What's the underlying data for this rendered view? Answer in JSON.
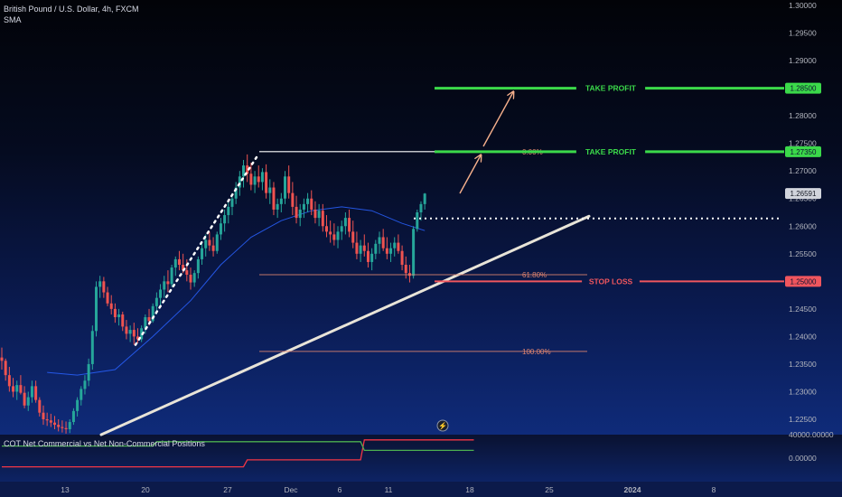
{
  "header": {
    "symbol_line": "British Pound / U.S. Dollar, 4h, FXCM",
    "indicator_label": "SMA"
  },
  "indicator": {
    "title": "COT Net Commercial vs Net Non-Commercial Positions",
    "axis_labels": [
      "40000.00000",
      "0.00000"
    ],
    "line_colors": {
      "commercial": "#f23645",
      "noncommercial": "#4caf50"
    }
  },
  "colors": {
    "up": "#26a69a",
    "down": "#ef5350",
    "take_profit": "#3bd94a",
    "stop_loss": "#f0565e",
    "sma": "#2962ff",
    "fib": "#e0856f",
    "trend": "#e8e4d8",
    "arrow": "#f6b08c"
  },
  "chart_data": {
    "type": "candlestick",
    "symbol": "GBP/USD",
    "timeframe": "4h",
    "y_axis": {
      "ticks": [
        "1.30000",
        "1.29500",
        "1.29000",
        "1.28500",
        "1.28000",
        "1.27500",
        "1.27000",
        "1.26500",
        "1.26000",
        "1.25500",
        "1.25000",
        "1.24500",
        "1.24000",
        "1.23500",
        "1.23000",
        "1.22500"
      ],
      "ylim": [
        1.221,
        1.301
      ]
    },
    "x_axis": {
      "ticks": [
        "13",
        "20",
        "27",
        "Dec",
        "6",
        "11",
        "18",
        "25",
        "2024",
        "8"
      ]
    },
    "current_price": "1.26591",
    "levels": [
      {
        "name": "take_profit_2",
        "label": "TAKE PROFIT",
        "price": 1.285,
        "tag": "1.28500"
      },
      {
        "name": "take_profit_1",
        "label": "TAKE PROFIT",
        "price": 1.2735,
        "tag": "1.27350"
      },
      {
        "name": "stop_loss",
        "label": "STOP LOSS",
        "price": 1.25,
        "tag": "1.25000"
      }
    ],
    "fibonacci": [
      {
        "label": "0.00%",
        "price": 1.2735
      },
      {
        "label": "61.80%",
        "price": 1.2512
      },
      {
        "label": "100.00%",
        "price": 1.2373
      }
    ],
    "entry_level": 1.2614,
    "ohlc": [
      [
        1.2362,
        1.238,
        1.234,
        1.2356
      ],
      [
        1.2356,
        1.236,
        1.232,
        1.233
      ],
      [
        1.233,
        1.2345,
        1.23,
        1.231
      ],
      [
        1.231,
        1.2325,
        1.229,
        1.23
      ],
      [
        1.23,
        1.232,
        1.2285,
        1.2312
      ],
      [
        1.2312,
        1.233,
        1.2295,
        1.2298
      ],
      [
        1.2298,
        1.231,
        1.227,
        1.2275
      ],
      [
        1.2275,
        1.23,
        1.2265,
        1.229
      ],
      [
        1.229,
        1.232,
        1.228,
        1.231
      ],
      [
        1.231,
        1.232,
        1.228,
        1.2285
      ],
      [
        1.2285,
        1.229,
        1.2255,
        1.2262
      ],
      [
        1.2262,
        1.2275,
        1.224,
        1.225
      ],
      [
        1.225,
        1.2262,
        1.2238,
        1.2248
      ],
      [
        1.2248,
        1.226,
        1.2236,
        1.2244
      ],
      [
        1.2244,
        1.2256,
        1.2232,
        1.224
      ],
      [
        1.224,
        1.225,
        1.2228,
        1.2236
      ],
      [
        1.2236,
        1.2248,
        1.2226,
        1.2234
      ],
      [
        1.2234,
        1.2246,
        1.2224,
        1.2232
      ],
      [
        1.2232,
        1.225,
        1.2225,
        1.2245
      ],
      [
        1.2245,
        1.227,
        1.224,
        1.2265
      ],
      [
        1.2265,
        1.229,
        1.2255,
        1.2285
      ],
      [
        1.2285,
        1.231,
        1.2275,
        1.2305
      ],
      [
        1.2305,
        1.233,
        1.2295,
        1.232
      ],
      [
        1.232,
        1.236,
        1.231,
        1.235
      ],
      [
        1.235,
        1.242,
        1.234,
        1.241
      ],
      [
        1.241,
        1.25,
        1.24,
        1.249
      ],
      [
        1.249,
        1.251,
        1.247,
        1.25
      ],
      [
        1.25,
        1.2508,
        1.247,
        1.248
      ],
      [
        1.248,
        1.249,
        1.2455,
        1.246
      ],
      [
        1.246,
        1.2475,
        1.244,
        1.245
      ],
      [
        1.245,
        1.246,
        1.2425,
        1.2435
      ],
      [
        1.2435,
        1.245,
        1.242,
        1.244
      ],
      [
        1.244,
        1.2445,
        1.241,
        1.2418
      ],
      [
        1.2418,
        1.243,
        1.2395,
        1.2405
      ],
      [
        1.2405,
        1.242,
        1.239,
        1.2412
      ],
      [
        1.2412,
        1.2425,
        1.2385,
        1.24
      ],
      [
        1.24,
        1.2415,
        1.2388,
        1.2395
      ],
      [
        1.2395,
        1.242,
        1.239,
        1.2415
      ],
      [
        1.2415,
        1.244,
        1.2405,
        1.2435
      ],
      [
        1.2435,
        1.245,
        1.242,
        1.2428
      ],
      [
        1.2428,
        1.246,
        1.2425,
        1.2455
      ],
      [
        1.2455,
        1.248,
        1.244,
        1.247
      ],
      [
        1.247,
        1.2495,
        1.2455,
        1.2485
      ],
      [
        1.2485,
        1.251,
        1.247,
        1.25
      ],
      [
        1.25,
        1.252,
        1.248,
        1.2495
      ],
      [
        1.2495,
        1.253,
        1.249,
        1.2525
      ],
      [
        1.2525,
        1.2545,
        1.251,
        1.254
      ],
      [
        1.254,
        1.2555,
        1.252,
        1.253
      ],
      [
        1.253,
        1.255,
        1.2515,
        1.252
      ],
      [
        1.252,
        1.254,
        1.25,
        1.2512
      ],
      [
        1.2512,
        1.2525,
        1.2485,
        1.2498
      ],
      [
        1.2498,
        1.252,
        1.249,
        1.2515
      ],
      [
        1.2515,
        1.2545,
        1.2505,
        1.254
      ],
      [
        1.254,
        1.257,
        1.253,
        1.256
      ],
      [
        1.256,
        1.2585,
        1.2545,
        1.2575
      ],
      [
        1.2575,
        1.259,
        1.2555,
        1.2565
      ],
      [
        1.2565,
        1.258,
        1.2545,
        1.2555
      ],
      [
        1.2555,
        1.259,
        1.255,
        1.2585
      ],
      [
        1.2585,
        1.2615,
        1.2575,
        1.2605
      ],
      [
        1.2605,
        1.263,
        1.259,
        1.262
      ],
      [
        1.262,
        1.2645,
        1.2605,
        1.2635
      ],
      [
        1.2635,
        1.266,
        1.262,
        1.265
      ],
      [
        1.265,
        1.268,
        1.264,
        1.267
      ],
      [
        1.267,
        1.27,
        1.2655,
        1.269
      ],
      [
        1.269,
        1.272,
        1.267,
        1.271
      ],
      [
        1.271,
        1.273,
        1.268,
        1.2695
      ],
      [
        1.2695,
        1.2715,
        1.2665,
        1.2675
      ],
      [
        1.2675,
        1.27,
        1.266,
        1.269
      ],
      [
        1.269,
        1.271,
        1.267,
        1.268
      ],
      [
        1.268,
        1.2705,
        1.2665,
        1.2698
      ],
      [
        1.2698,
        1.2712,
        1.265,
        1.266
      ],
      [
        1.266,
        1.2685,
        1.264,
        1.267
      ],
      [
        1.267,
        1.268,
        1.262,
        1.263
      ],
      [
        1.263,
        1.265,
        1.2615,
        1.264
      ],
      [
        1.264,
        1.266,
        1.2625,
        1.265
      ],
      [
        1.265,
        1.27,
        1.264,
        1.269
      ],
      [
        1.269,
        1.271,
        1.265,
        1.266
      ],
      [
        1.266,
        1.268,
        1.262,
        1.2635
      ],
      [
        1.2635,
        1.2655,
        1.2605,
        1.2615
      ],
      [
        1.2615,
        1.264,
        1.26,
        1.263
      ],
      [
        1.263,
        1.265,
        1.2615,
        1.264
      ],
      [
        1.264,
        1.266,
        1.2625,
        1.265
      ],
      [
        1.265,
        1.2665,
        1.262,
        1.263
      ],
      [
        1.263,
        1.2645,
        1.2605,
        1.2615
      ],
      [
        1.2615,
        1.264,
        1.26,
        1.2628
      ],
      [
        1.2628,
        1.264,
        1.259,
        1.26
      ],
      [
        1.26,
        1.262,
        1.258,
        1.259
      ],
      [
        1.259,
        1.261,
        1.257,
        1.2585
      ],
      [
        1.2585,
        1.2605,
        1.2565,
        1.2575
      ],
      [
        1.2575,
        1.26,
        1.256,
        1.259
      ],
      [
        1.259,
        1.261,
        1.2575,
        1.26
      ],
      [
        1.26,
        1.2625,
        1.2585,
        1.2615
      ],
      [
        1.2615,
        1.263,
        1.258,
        1.259
      ],
      [
        1.259,
        1.261,
        1.256,
        1.257
      ],
      [
        1.257,
        1.259,
        1.254,
        1.255
      ],
      [
        1.255,
        1.2575,
        1.2535,
        1.2565
      ],
      [
        1.2565,
        1.2585,
        1.2545,
        1.2555
      ],
      [
        1.2555,
        1.257,
        1.2525,
        1.2535
      ],
      [
        1.2535,
        1.256,
        1.252,
        1.255
      ],
      [
        1.255,
        1.2575,
        1.254,
        1.2568
      ],
      [
        1.2568,
        1.259,
        1.255,
        1.258
      ],
      [
        1.258,
        1.2595,
        1.2555,
        1.256
      ],
      [
        1.256,
        1.258,
        1.254,
        1.255
      ],
      [
        1.255,
        1.257,
        1.2535,
        1.256
      ],
      [
        1.256,
        1.258,
        1.2545,
        1.257
      ],
      [
        1.257,
        1.2585,
        1.255,
        1.2555
      ],
      [
        1.2555,
        1.2565,
        1.252,
        1.253
      ],
      [
        1.253,
        1.2545,
        1.2505,
        1.2515
      ],
      [
        1.2515,
        1.253,
        1.2498,
        1.251
      ],
      [
        1.251,
        1.26,
        1.2505,
        1.2595
      ],
      [
        1.2595,
        1.263,
        1.259,
        1.2625
      ],
      [
        1.2625,
        1.2645,
        1.261,
        1.264
      ],
      [
        1.264,
        1.266,
        1.263,
        1.2659
      ]
    ],
    "sma": [
      [
        12,
        1.2335
      ],
      [
        20,
        1.233
      ],
      [
        30,
        1.234
      ],
      [
        40,
        1.24
      ],
      [
        50,
        1.2465
      ],
      [
        58,
        1.253
      ],
      [
        66,
        1.258
      ],
      [
        74,
        1.261
      ],
      [
        82,
        1.2628
      ],
      [
        90,
        1.2635
      ],
      [
        98,
        1.2628
      ],
      [
        106,
        1.2605
      ],
      [
        112,
        1.2592
      ]
    ],
    "cot_commercial": [
      [
        0,
        0.3
      ],
      [
        64,
        0.3
      ],
      [
        65,
        0.46
      ],
      [
        95,
        0.46
      ],
      [
        96,
        0.92
      ],
      [
        125,
        0.92
      ]
    ],
    "cot_noncommercial": [
      [
        0,
        0.78
      ],
      [
        40,
        0.78
      ],
      [
        41,
        0.88
      ],
      [
        95,
        0.88
      ],
      [
        96,
        0.68
      ],
      [
        125,
        0.68
      ]
    ]
  }
}
